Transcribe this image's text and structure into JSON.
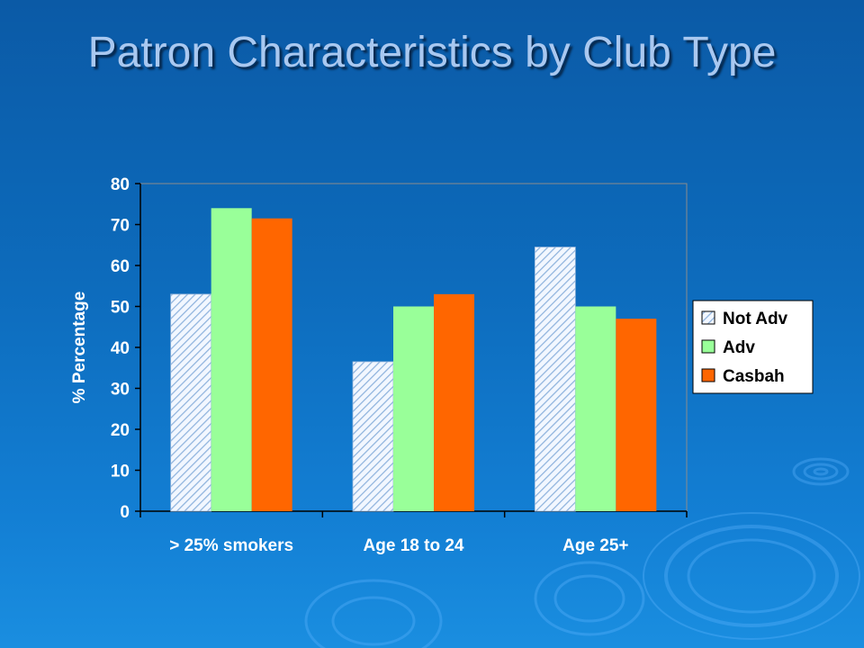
{
  "slide": {
    "title": "Patron Characteristics by Club Type"
  },
  "colors": {
    "not_adv": "#d7e8ff",
    "adv": "#99ff99",
    "casbah": "#ff6600"
  },
  "chart_data": {
    "type": "bar",
    "title": "",
    "xlabel": "",
    "ylabel": "% Percentage",
    "ylim": [
      0,
      80
    ],
    "yticks": [
      0,
      10,
      20,
      30,
      40,
      50,
      60,
      70,
      80
    ],
    "categories": [
      "> 25% smokers",
      "Age 18 to 24",
      "Age 25+"
    ],
    "series": [
      {
        "name": "Not Adv",
        "values": [
          53,
          36.5,
          64.5
        ],
        "color": "#d7e8ff",
        "pattern": "diagonal-hatch"
      },
      {
        "name": "Adv",
        "values": [
          74,
          50,
          50
        ],
        "color": "#99ff99"
      },
      {
        "name": "Casbah",
        "values": [
          71.5,
          53,
          47
        ],
        "color": "#ff6600"
      }
    ],
    "legend": "right",
    "grid": false
  }
}
